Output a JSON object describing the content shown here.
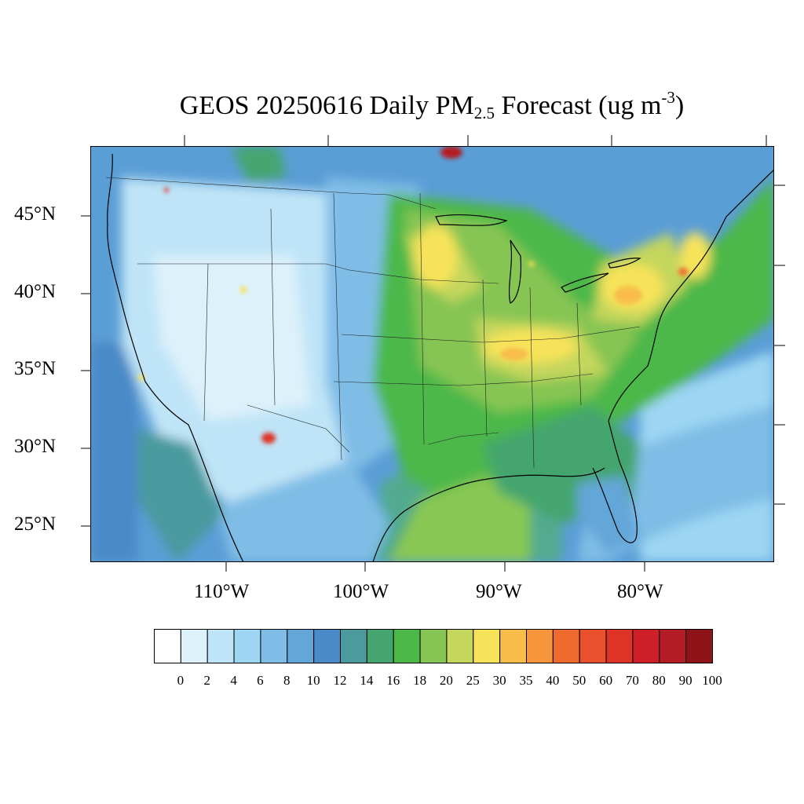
{
  "title": {
    "prefix": "GEOS 20250616 Daily PM",
    "subscript": "2.5",
    "middle": " Forecast (ug m",
    "superscript": "-3",
    "suffix": ")"
  },
  "map": {
    "region": "Continental United States",
    "projection": "Lambert conformal",
    "variable": "Daily PM2.5 forecast",
    "units": "ug m-3",
    "lat_labels": [
      "45°N",
      "40°N",
      "35°N",
      "30°N",
      "25°N"
    ],
    "lon_labels": [
      "110°W",
      "100°W",
      "90°W",
      "80°W"
    ],
    "colors": {
      "ocean": "#5a9ed6",
      "gulf_plume": "#c8d35a",
      "boundary_lines": "#000000"
    }
  },
  "legend": {
    "tick_labels": [
      "0",
      "2",
      "4",
      "6",
      "8",
      "10",
      "12",
      "14",
      "16",
      "18",
      "20",
      "25",
      "30",
      "35",
      "40",
      "50",
      "60",
      "70",
      "80",
      "90",
      "100"
    ],
    "colors": [
      "#ffffff",
      "#ddf1fb",
      "#bfe4f7",
      "#9dd5f3",
      "#80bde6",
      "#63a6d8",
      "#4a8ac8",
      "#4a9a9e",
      "#44a56e",
      "#4cb848",
      "#86c553",
      "#c4d65c",
      "#f7e35a",
      "#f8bd48",
      "#f6953b",
      "#f06a2e",
      "#e9502c",
      "#de3428",
      "#cf2029",
      "#b31c24",
      "#8f1419"
    ]
  }
}
